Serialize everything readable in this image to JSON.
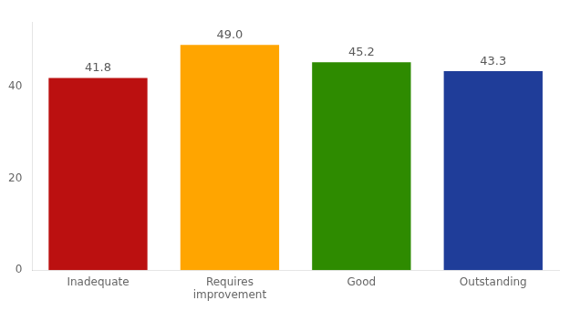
{
  "chart_data": {
    "type": "bar",
    "categories": [
      "Inadequate",
      "Requires\nimprovement",
      "Good",
      "Outstanding"
    ],
    "values": [
      41.8,
      49.0,
      45.2,
      43.3
    ],
    "value_labels": [
      "41.8",
      "49.0",
      "45.2",
      "43.3"
    ],
    "colors": [
      "#bb1010",
      "#ffa500",
      "#2e8b00",
      "#1f3d99"
    ],
    "ylim": [
      0,
      54
    ],
    "yticks": [
      0,
      20,
      40
    ],
    "grid": false,
    "data_labels": true
  }
}
